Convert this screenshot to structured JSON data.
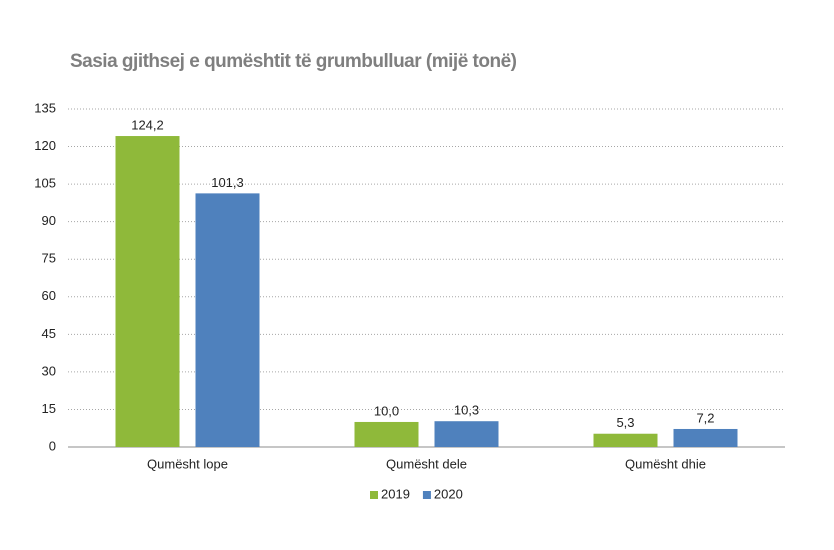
{
  "chart_data": {
    "type": "bar",
    "title": "Sasia gjithsej e qumështit të grumbulluar (mijë tonë)",
    "categories": [
      "Qumësht lope",
      "Qumësht dele",
      "Qumësht dhie"
    ],
    "series": [
      {
        "name": "2019",
        "color": "#8fb93a",
        "values": [
          124.2,
          10.0,
          5.3
        ],
        "value_labels": [
          "124,2",
          "10,0",
          "5,3"
        ]
      },
      {
        "name": "2020",
        "color": "#4f81bd",
        "values": [
          101.3,
          10.3,
          7.2
        ],
        "value_labels": [
          "101,3",
          "10,3",
          "7,2"
        ]
      }
    ],
    "ylim": [
      0,
      135
    ],
    "yticks": [
      0,
      15,
      30,
      45,
      60,
      75,
      90,
      105,
      120,
      135
    ],
    "grid": true,
    "legend": "bottom"
  }
}
